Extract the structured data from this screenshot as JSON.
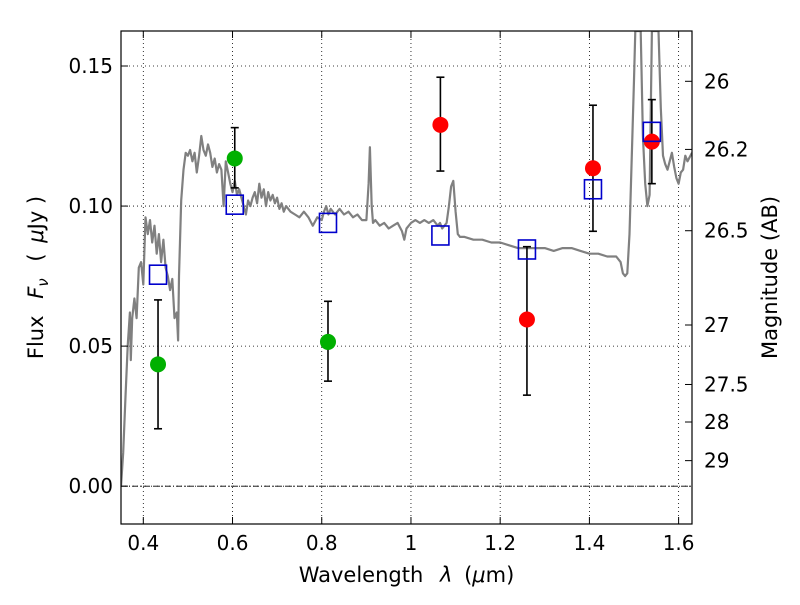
{
  "chart_data": {
    "type": "scatter",
    "x_axis": {
      "label_prefix": "Wavelength",
      "label_symbol": "λ",
      "label_unit_open": "(",
      "label_unit_mu": "μ",
      "label_unit_rest": "m)",
      "range": [
        0.35,
        1.63
      ],
      "ticks": [
        {
          "value": 0.4,
          "label": "0.4"
        },
        {
          "value": 0.6,
          "label": "0.6"
        },
        {
          "value": 0.8,
          "label": "0.8"
        },
        {
          "value": 1.0,
          "label": "1"
        },
        {
          "value": 1.2,
          "label": "1.2"
        },
        {
          "value": 1.4,
          "label": "1.4"
        },
        {
          "value": 1.6,
          "label": "1.6"
        }
      ]
    },
    "y_axis": {
      "label_prefix": "Flux",
      "label_symbol": "F",
      "label_subscript": "ν",
      "label_unit_open": "(",
      "label_unit_mu": "μ",
      "label_unit_rest": "Jy )",
      "range": [
        -0.0135,
        0.1625
      ],
      "ticks": [
        {
          "value": 0.0,
          "label": "0.00"
        },
        {
          "value": 0.05,
          "label": "0.05"
        },
        {
          "value": 0.1,
          "label": "0.10"
        },
        {
          "value": 0.15,
          "label": "0.15"
        }
      ]
    },
    "y2_axis": {
      "label": "Magnitude (AB)",
      "ticks": [
        {
          "value": 26.0,
          "label": "26"
        },
        {
          "value": 26.2,
          "label": "26.2"
        },
        {
          "value": 26.5,
          "label": "26.5"
        },
        {
          "value": 27.0,
          "label": "27"
        },
        {
          "value": 27.5,
          "label": "27.5"
        },
        {
          "value": 28.0,
          "label": "28"
        },
        {
          "value": 29.0,
          "label": "29"
        }
      ]
    },
    "grid": true,
    "zero_line": true,
    "series": [
      {
        "kind": "line",
        "color": "#808080",
        "points": [
          [
            0.35,
            0.0
          ],
          [
            0.355,
            0.012
          ],
          [
            0.36,
            0.032
          ],
          [
            0.365,
            0.05
          ],
          [
            0.37,
            0.062
          ],
          [
            0.372,
            0.045
          ],
          [
            0.375,
            0.06
          ],
          [
            0.38,
            0.067
          ],
          [
            0.385,
            0.06
          ],
          [
            0.39,
            0.078
          ],
          [
            0.395,
            0.08
          ],
          [
            0.4,
            0.072
          ],
          [
            0.405,
            0.096
          ],
          [
            0.41,
            0.09
          ],
          [
            0.415,
            0.095
          ],
          [
            0.42,
            0.087
          ],
          [
            0.425,
            0.093
          ],
          [
            0.43,
            0.083
          ],
          [
            0.435,
            0.09
          ],
          [
            0.44,
            0.08
          ],
          [
            0.445,
            0.088
          ],
          [
            0.45,
            0.078
          ],
          [
            0.455,
            0.075
          ],
          [
            0.46,
            0.07
          ],
          [
            0.465,
            0.074
          ],
          [
            0.47,
            0.06
          ],
          [
            0.475,
            0.062
          ],
          [
            0.478,
            0.052
          ],
          [
            0.48,
            0.075
          ],
          [
            0.485,
            0.102
          ],
          [
            0.49,
            0.113
          ],
          [
            0.495,
            0.119
          ],
          [
            0.5,
            0.118
          ],
          [
            0.505,
            0.12
          ],
          [
            0.51,
            0.116
          ],
          [
            0.515,
            0.119
          ],
          [
            0.52,
            0.112
          ],
          [
            0.525,
            0.118
          ],
          [
            0.53,
            0.125
          ],
          [
            0.535,
            0.12
          ],
          [
            0.54,
            0.118
          ],
          [
            0.545,
            0.122
          ],
          [
            0.55,
            0.119
          ],
          [
            0.555,
            0.114
          ],
          [
            0.56,
            0.117
          ],
          [
            0.565,
            0.112
          ],
          [
            0.57,
            0.115
          ],
          [
            0.575,
            0.113
          ],
          [
            0.58,
            0.1
          ],
          [
            0.585,
            0.116
          ],
          [
            0.59,
            0.112
          ],
          [
            0.595,
            0.108
          ],
          [
            0.6,
            0.105
          ],
          [
            0.605,
            0.109
          ],
          [
            0.61,
            0.104
          ],
          [
            0.615,
            0.106
          ],
          [
            0.62,
            0.103
          ],
          [
            0.625,
            0.1
          ],
          [
            0.63,
            0.097
          ],
          [
            0.635,
            0.102
          ],
          [
            0.64,
            0.1
          ],
          [
            0.645,
            0.103
          ],
          [
            0.65,
            0.105
          ],
          [
            0.655,
            0.101
          ],
          [
            0.66,
            0.108
          ],
          [
            0.665,
            0.103
          ],
          [
            0.67,
            0.106
          ],
          [
            0.675,
            0.1
          ],
          [
            0.68,
            0.105
          ],
          [
            0.685,
            0.102
          ],
          [
            0.69,
            0.104
          ],
          [
            0.695,
            0.101
          ],
          [
            0.7,
            0.103
          ],
          [
            0.705,
            0.099
          ],
          [
            0.71,
            0.101
          ],
          [
            0.715,
            0.098
          ],
          [
            0.72,
            0.1
          ],
          [
            0.73,
            0.098
          ],
          [
            0.74,
            0.097
          ],
          [
            0.75,
            0.096
          ],
          [
            0.76,
            0.098
          ],
          [
            0.77,
            0.096
          ],
          [
            0.78,
            0.093
          ],
          [
            0.79,
            0.096
          ],
          [
            0.8,
            0.095
          ],
          [
            0.805,
            0.098
          ],
          [
            0.81,
            0.1
          ],
          [
            0.815,
            0.097
          ],
          [
            0.82,
            0.099
          ],
          [
            0.83,
            0.097
          ],
          [
            0.84,
            0.099
          ],
          [
            0.85,
            0.097
          ],
          [
            0.86,
            0.098
          ],
          [
            0.87,
            0.096
          ],
          [
            0.88,
            0.097
          ],
          [
            0.89,
            0.095
          ],
          [
            0.9,
            0.095
          ],
          [
            0.905,
            0.108
          ],
          [
            0.908,
            0.121
          ],
          [
            0.912,
            0.1
          ],
          [
            0.915,
            0.094
          ],
          [
            0.92,
            0.095
          ],
          [
            0.93,
            0.093
          ],
          [
            0.94,
            0.094
          ],
          [
            0.95,
            0.092
          ],
          [
            0.96,
            0.093
          ],
          [
            0.97,
            0.094
          ],
          [
            0.98,
            0.091
          ],
          [
            0.985,
            0.088
          ],
          [
            0.99,
            0.092
          ],
          [
            1.0,
            0.094
          ],
          [
            1.01,
            0.095
          ],
          [
            1.02,
            0.094
          ],
          [
            1.03,
            0.095
          ],
          [
            1.04,
            0.094
          ],
          [
            1.05,
            0.095
          ],
          [
            1.06,
            0.093
          ],
          [
            1.065,
            0.094
          ],
          [
            1.07,
            0.092
          ],
          [
            1.08,
            0.094
          ],
          [
            1.085,
            0.1
          ],
          [
            1.09,
            0.107
          ],
          [
            1.095,
            0.109
          ],
          [
            1.1,
            0.098
          ],
          [
            1.105,
            0.09
          ],
          [
            1.11,
            0.089
          ],
          [
            1.12,
            0.089
          ],
          [
            1.14,
            0.088
          ],
          [
            1.16,
            0.088
          ],
          [
            1.18,
            0.087
          ],
          [
            1.2,
            0.087
          ],
          [
            1.22,
            0.086
          ],
          [
            1.24,
            0.085
          ],
          [
            1.26,
            0.085
          ],
          [
            1.28,
            0.085
          ],
          [
            1.3,
            0.085
          ],
          [
            1.32,
            0.084
          ],
          [
            1.34,
            0.085
          ],
          [
            1.36,
            0.085
          ],
          [
            1.38,
            0.084
          ],
          [
            1.4,
            0.083
          ],
          [
            1.42,
            0.083
          ],
          [
            1.44,
            0.082
          ],
          [
            1.46,
            0.082
          ],
          [
            1.47,
            0.08
          ],
          [
            1.475,
            0.076
          ],
          [
            1.48,
            0.075
          ],
          [
            1.485,
            0.076
          ],
          [
            1.49,
            0.09
          ],
          [
            1.495,
            0.118
          ],
          [
            1.5,
            0.145
          ],
          [
            1.503,
            0.1625
          ],
          [
            1.515,
            0.1625
          ],
          [
            1.52,
            0.125
          ],
          [
            1.525,
            0.108
          ],
          [
            1.53,
            0.1
          ],
          [
            1.535,
            0.104
          ],
          [
            1.54,
            0.1625
          ],
          [
            1.555,
            0.1625
          ],
          [
            1.56,
            0.135
          ],
          [
            1.565,
            0.118
          ],
          [
            1.57,
            0.115
          ],
          [
            1.575,
            0.113
          ],
          [
            1.58,
            0.116
          ],
          [
            1.585,
            0.119
          ],
          [
            1.59,
            0.114
          ],
          [
            1.595,
            0.11
          ],
          [
            1.6,
            0.108
          ],
          [
            1.605,
            0.112
          ],
          [
            1.61,
            0.113
          ],
          [
            1.615,
            0.118
          ],
          [
            1.62,
            0.116
          ],
          [
            1.63,
            0.119
          ]
        ]
      },
      {
        "kind": "points",
        "color": "#00b000",
        "points": [
          {
            "x": 0.433,
            "y": 0.0435,
            "err_low": 0.0205,
            "err_high": 0.0665
          },
          {
            "x": 0.605,
            "y": 0.117,
            "err_low": 0.1065,
            "err_high": 0.128
          },
          {
            "x": 0.814,
            "y": 0.0515,
            "err_low": 0.0375,
            "err_high": 0.066
          }
        ]
      },
      {
        "kind": "points",
        "color": "#ff0000",
        "points": [
          {
            "x": 1.066,
            "y": 0.129,
            "err_low": 0.1125,
            "err_high": 0.146
          },
          {
            "x": 1.26,
            "y": 0.0595,
            "err_low": 0.0325,
            "err_high": 0.0855
          },
          {
            "x": 1.408,
            "y": 0.1135,
            "err_low": 0.091,
            "err_high": 0.136
          },
          {
            "x": 1.54,
            "y": 0.123,
            "err_low": 0.108,
            "err_high": 0.138
          }
        ]
      },
      {
        "kind": "squares",
        "color": "#0000cc",
        "points": [
          {
            "x": 0.433,
            "y": 0.0755
          },
          {
            "x": 0.605,
            "y": 0.1005
          },
          {
            "x": 0.814,
            "y": 0.094
          },
          {
            "x": 1.066,
            "y": 0.0895
          },
          {
            "x": 1.26,
            "y": 0.0845
          },
          {
            "x": 1.408,
            "y": 0.106
          },
          {
            "x": 1.54,
            "y": 0.1265
          }
        ]
      }
    ]
  }
}
